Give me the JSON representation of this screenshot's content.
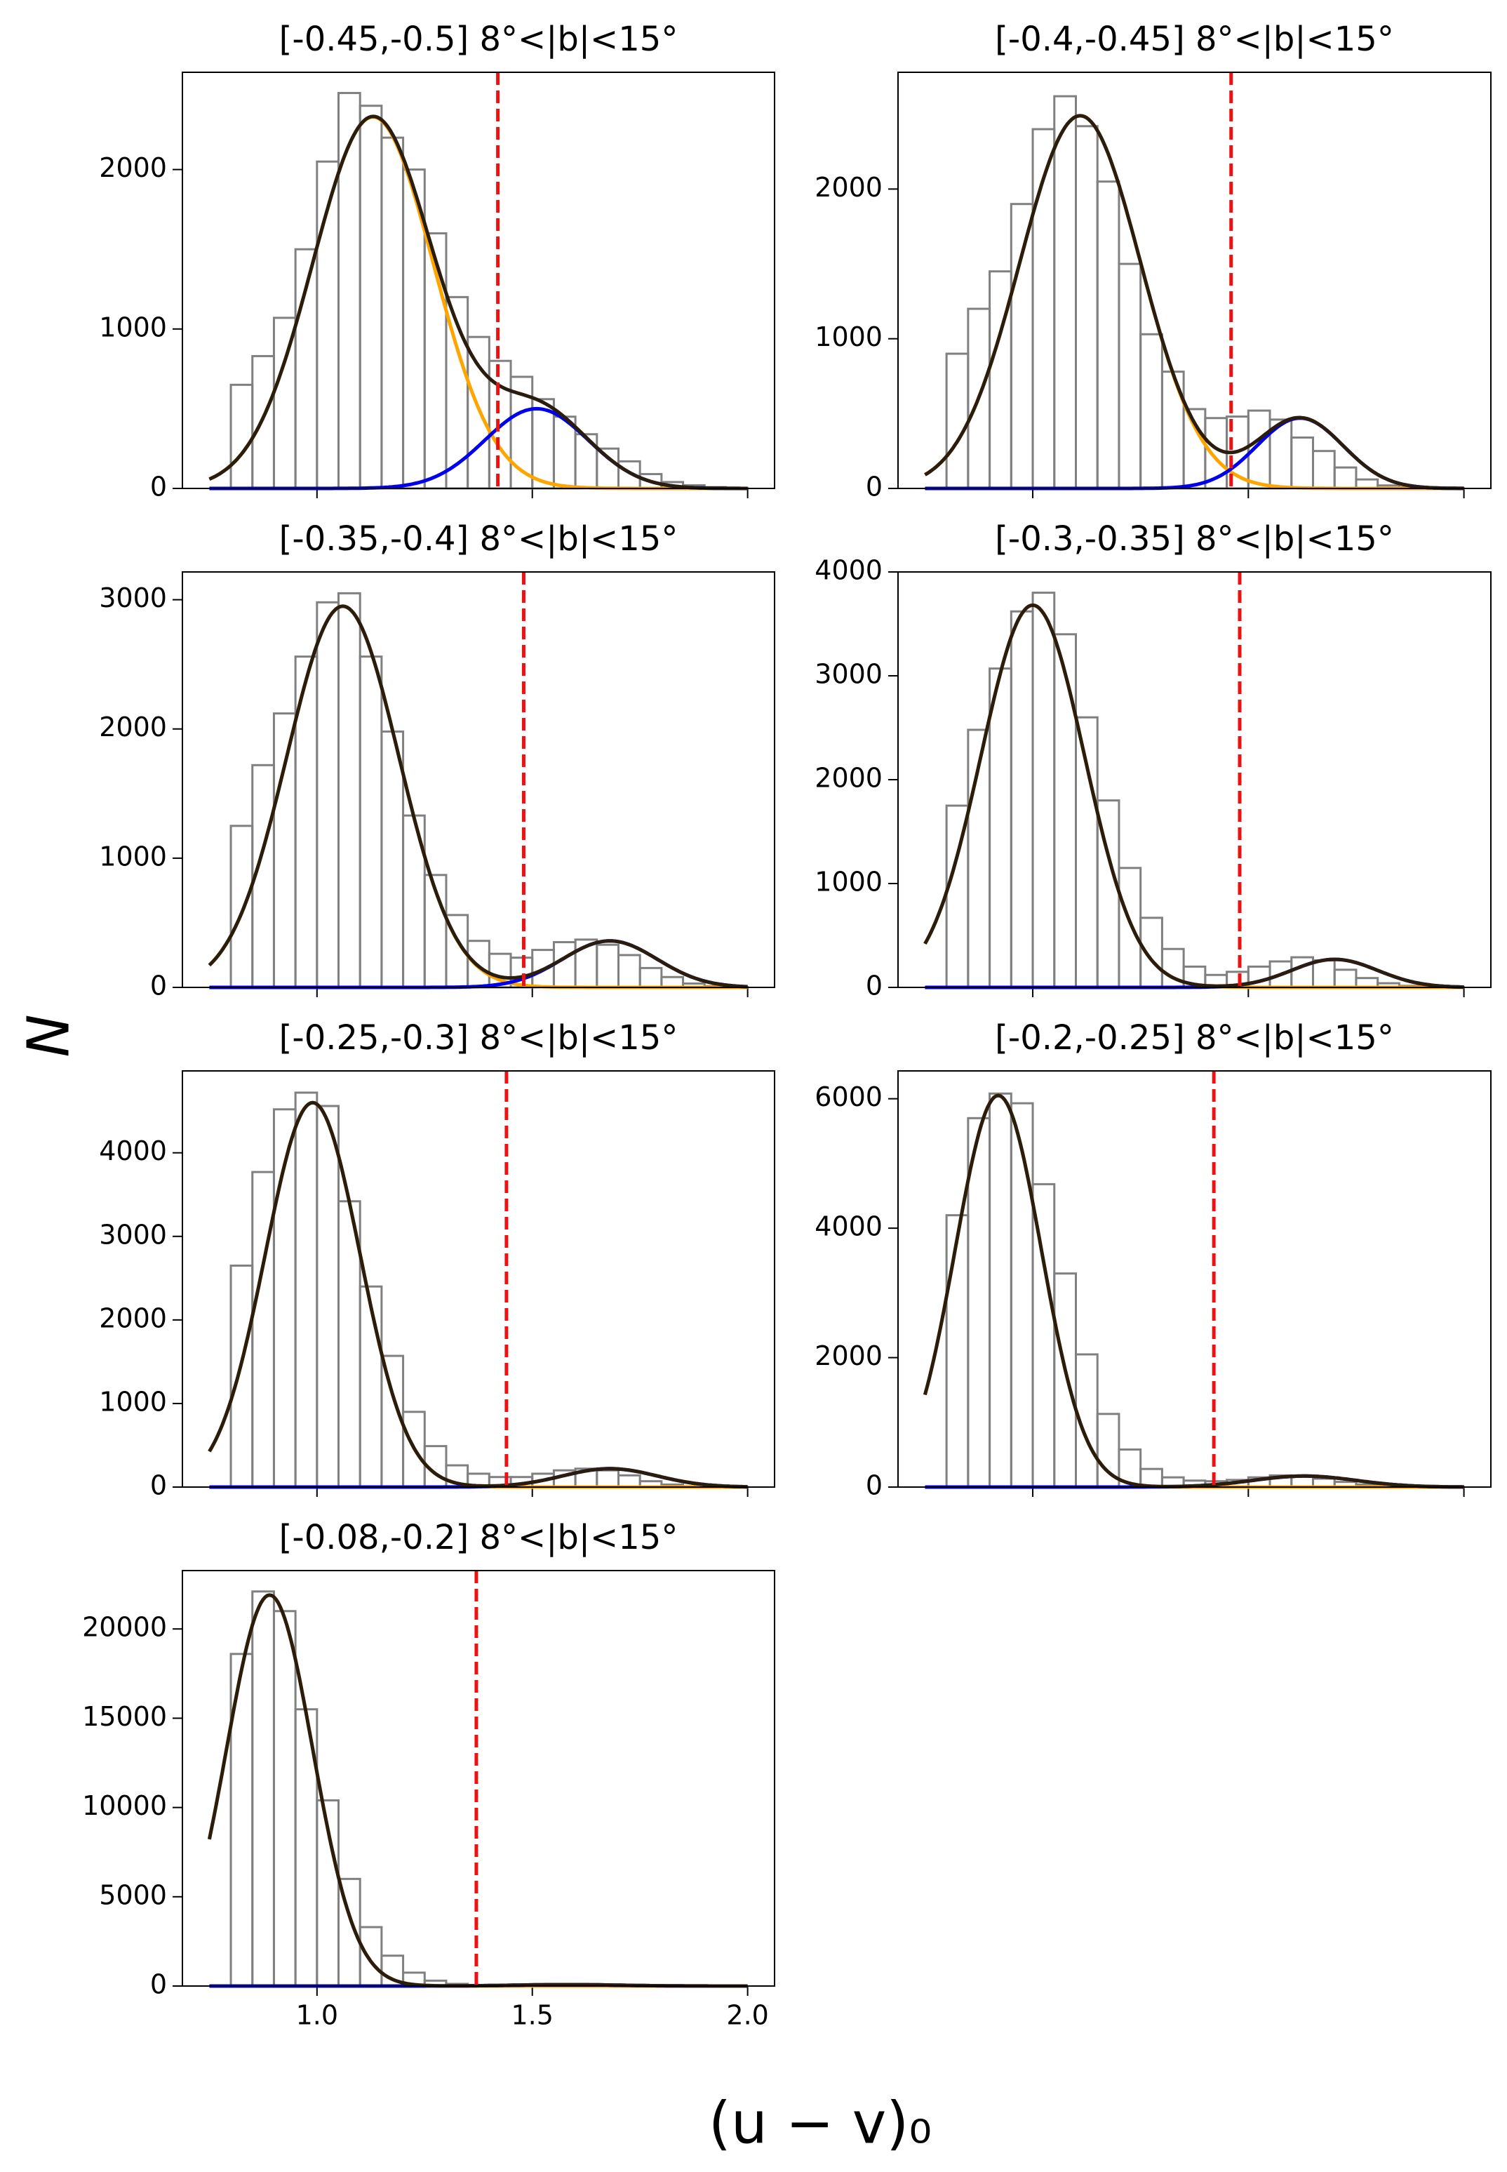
{
  "figure": {
    "ylabel": "N",
    "xlabel": "(u − v)₀"
  },
  "chart_data": [
    {
      "type": "histogram",
      "title": "[-0.45,-0.5] 8°<|b|<15°",
      "bins": [
        0.8,
        0.85,
        0.9,
        0.95,
        1.0,
        1.05,
        1.1,
        1.15,
        1.2,
        1.25,
        1.3,
        1.35,
        1.4,
        1.45,
        1.5,
        1.55,
        1.6,
        1.65,
        1.7,
        1.75,
        1.8,
        1.85,
        1.9,
        1.95,
        2.0
      ],
      "counts": [
        650,
        830,
        1070,
        1500,
        2050,
        2480,
        2400,
        2200,
        2000,
        1600,
        1200,
        950,
        800,
        700,
        560,
        450,
        340,
        250,
        170,
        90,
        40,
        20,
        8,
        3
      ],
      "hist_color": "#808080",
      "curve_x": [
        0.75,
        2.0
      ],
      "components": [
        {
          "color": "#ffa500",
          "amplitude": 2330,
          "mean": 1.13,
          "sigma": 0.14
        },
        {
          "color": "#0000ee",
          "amplitude": 500,
          "mean": 1.51,
          "sigma": 0.12
        }
      ],
      "total_color": "#2b1d0e",
      "threshold": 1.42,
      "threshold_color": "#ee1111",
      "xlim": [
        0.6875,
        2.0625
      ],
      "xticks": [
        1.0,
        1.5,
        2.0
      ],
      "ylim": [
        0,
        2610
      ],
      "yticks": [
        0,
        1000,
        2000
      ]
    },
    {
      "type": "histogram",
      "title": "[-0.4,-0.45] 8°<|b|<15°",
      "bins": [
        0.8,
        0.85,
        0.9,
        0.95,
        1.0,
        1.05,
        1.1,
        1.15,
        1.2,
        1.25,
        1.3,
        1.35,
        1.4,
        1.45,
        1.5,
        1.55,
        1.6,
        1.65,
        1.7,
        1.75,
        1.8,
        1.85,
        1.9,
        1.95,
        2.0
      ],
      "counts": [
        900,
        1200,
        1450,
        1900,
        2400,
        2620,
        2420,
        2050,
        1500,
        1030,
        780,
        530,
        470,
        480,
        520,
        460,
        340,
        250,
        140,
        60,
        20,
        8,
        3,
        1
      ],
      "hist_color": "#808080",
      "curve_x": [
        0.75,
        2.0
      ],
      "components": [
        {
          "color": "#ffa500",
          "amplitude": 2490,
          "mean": 1.11,
          "sigma": 0.14
        },
        {
          "color": "#0000ee",
          "amplitude": 470,
          "mean": 1.62,
          "sigma": 0.1
        }
      ],
      "total_color": "#2b1d0e",
      "threshold": 1.46,
      "threshold_color": "#ee1111",
      "xlim": [
        0.6875,
        2.0625
      ],
      "xticks": [
        1.0,
        1.5,
        2.0
      ],
      "ylim": [
        0,
        2780
      ],
      "yticks": [
        0,
        1000,
        2000
      ]
    },
    {
      "type": "histogram",
      "title": "[-0.35,-0.4] 8°<|b|<15°",
      "bins": [
        0.8,
        0.85,
        0.9,
        0.95,
        1.0,
        1.05,
        1.1,
        1.15,
        1.2,
        1.25,
        1.3,
        1.35,
        1.4,
        1.45,
        1.5,
        1.55,
        1.6,
        1.65,
        1.7,
        1.75,
        1.8,
        1.85,
        1.9,
        1.95,
        2.0
      ],
      "counts": [
        1250,
        1720,
        2120,
        2560,
        2980,
        3050,
        2560,
        1980,
        1330,
        870,
        560,
        360,
        260,
        230,
        290,
        350,
        370,
        330,
        250,
        150,
        80,
        30,
        10,
        3
      ],
      "hist_color": "#808080",
      "curve_x": [
        0.75,
        2.0
      ],
      "components": [
        {
          "color": "#ffa500",
          "amplitude": 2950,
          "mean": 1.06,
          "sigma": 0.13
        },
        {
          "color": "#0000ee",
          "amplitude": 360,
          "mean": 1.68,
          "sigma": 0.11
        }
      ],
      "total_color": "#2b1d0e",
      "threshold": 1.48,
      "threshold_color": "#ee1111",
      "xlim": [
        0.6875,
        2.0625
      ],
      "xticks": [
        1.0,
        1.5,
        2.0
      ],
      "ylim": [
        0,
        3215
      ],
      "yticks": [
        0,
        1000,
        2000,
        3000
      ]
    },
    {
      "type": "histogram",
      "title": "[-0.3,-0.35] 8°<|b|<15°",
      "bins": [
        0.8,
        0.85,
        0.9,
        0.95,
        1.0,
        1.05,
        1.1,
        1.15,
        1.2,
        1.25,
        1.3,
        1.35,
        1.4,
        1.45,
        1.5,
        1.55,
        1.6,
        1.65,
        1.7,
        1.75,
        1.8,
        1.85,
        1.9,
        1.95,
        2.0
      ],
      "counts": [
        1750,
        2480,
        3070,
        3620,
        3800,
        3400,
        2600,
        1800,
        1150,
        670,
        370,
        200,
        120,
        150,
        200,
        250,
        290,
        260,
        170,
        90,
        40,
        15,
        5,
        2
      ],
      "hist_color": "#808080",
      "curve_x": [
        0.75,
        2.0
      ],
      "components": [
        {
          "color": "#ffa500",
          "amplitude": 3680,
          "mean": 1.0,
          "sigma": 0.12
        },
        {
          "color": "#0000ee",
          "amplitude": 270,
          "mean": 1.7,
          "sigma": 0.1
        }
      ],
      "total_color": "#2b1d0e",
      "threshold": 1.48,
      "threshold_color": "#ee1111",
      "xlim": [
        0.6875,
        2.0625
      ],
      "xticks": [
        1.0,
        1.5,
        2.0
      ],
      "ylim": [
        0,
        4000
      ],
      "yticks": [
        0,
        1000,
        2000,
        3000,
        4000
      ]
    },
    {
      "type": "histogram",
      "title": "[-0.25,-0.3] 8°<|b|<15°",
      "bins": [
        0.8,
        0.85,
        0.9,
        0.95,
        1.0,
        1.05,
        1.1,
        1.15,
        1.2,
        1.25,
        1.3,
        1.35,
        1.4,
        1.45,
        1.5,
        1.55,
        1.6,
        1.65,
        1.7,
        1.75,
        1.8,
        1.85,
        1.9,
        1.95,
        2.0
      ],
      "counts": [
        2650,
        3770,
        4520,
        4720,
        4560,
        3420,
        2400,
        1570,
        900,
        490,
        260,
        160,
        120,
        120,
        160,
        200,
        220,
        200,
        140,
        70,
        30,
        10,
        4,
        1
      ],
      "hist_color": "#808080",
      "curve_x": [
        0.75,
        2.0
      ],
      "components": [
        {
          "color": "#ffa500",
          "amplitude": 4600,
          "mean": 0.99,
          "sigma": 0.11
        },
        {
          "color": "#0000ee",
          "amplitude": 220,
          "mean": 1.68,
          "sigma": 0.11
        }
      ],
      "total_color": "#2b1d0e",
      "threshold": 1.44,
      "threshold_color": "#ee1111",
      "xlim": [
        0.6875,
        2.0625
      ],
      "xticks": [
        1.0,
        1.5,
        2.0
      ],
      "ylim": [
        0,
        4980
      ],
      "yticks": [
        0,
        1000,
        2000,
        3000,
        4000
      ]
    },
    {
      "type": "histogram",
      "title": "[-0.2,-0.25] 8°<|b|<15°",
      "bins": [
        0.8,
        0.85,
        0.9,
        0.95,
        1.0,
        1.05,
        1.1,
        1.15,
        1.2,
        1.25,
        1.3,
        1.35,
        1.4,
        1.45,
        1.5,
        1.55,
        1.6,
        1.65,
        1.7,
        1.75,
        1.8,
        1.85,
        1.9,
        1.95,
        2.0
      ],
      "counts": [
        4200,
        5700,
        6080,
        5930,
        4680,
        3300,
        2050,
        1130,
        580,
        280,
        150,
        100,
        90,
        110,
        150,
        180,
        170,
        130,
        80,
        40,
        15,
        5,
        2,
        1
      ],
      "hist_color": "#808080",
      "curve_x": [
        0.75,
        2.0
      ],
      "components": [
        {
          "color": "#ffa500",
          "amplitude": 6050,
          "mean": 0.92,
          "sigma": 0.1
        },
        {
          "color": "#0000ee",
          "amplitude": 170,
          "mean": 1.63,
          "sigma": 0.12
        }
      ],
      "total_color": "#2b1d0e",
      "threshold": 1.42,
      "threshold_color": "#ee1111",
      "xlim": [
        0.6875,
        2.0625
      ],
      "xticks": [
        1.0,
        1.5,
        2.0
      ],
      "ylim": [
        0,
        6430
      ],
      "yticks": [
        0,
        2000,
        4000,
        6000
      ]
    },
    {
      "type": "histogram",
      "title": "[-0.08,-0.2] 8°<|b|<15°",
      "bins": [
        0.8,
        0.85,
        0.9,
        0.95,
        1.0,
        1.05,
        1.1,
        1.15,
        1.2,
        1.25,
        1.3,
        1.35,
        1.4,
        1.45,
        1.5,
        1.55,
        1.6,
        1.65,
        1.7,
        1.75,
        1.8,
        1.85,
        1.9,
        1.95,
        2.0
      ],
      "counts": [
        18600,
        22100,
        21000,
        15500,
        10400,
        6000,
        3300,
        1700,
        750,
        300,
        120,
        60,
        50,
        60,
        70,
        80,
        70,
        50,
        30,
        15,
        6,
        2,
        1,
        0
      ],
      "hist_color": "#808080",
      "curve_x": [
        0.75,
        2.0
      ],
      "components": [
        {
          "color": "#ffa500",
          "amplitude": 21900,
          "mean": 0.89,
          "sigma": 0.1
        },
        {
          "color": "#0000ee",
          "amplitude": 80,
          "mean": 1.58,
          "sigma": 0.12
        }
      ],
      "total_color": "#2b1d0e",
      "threshold": 1.37,
      "threshold_color": "#ee1111",
      "xlim": [
        0.6875,
        2.0625
      ],
      "xticks": [
        {
          "value": 1.0,
          "label": "1.0"
        },
        {
          "value": 1.5,
          "label": "1.5"
        },
        {
          "value": 2.0,
          "label": "2.0"
        }
      ],
      "ylim": [
        0,
        23270
      ],
      "yticks": [
        0,
        5000,
        10000,
        15000,
        20000
      ]
    }
  ]
}
